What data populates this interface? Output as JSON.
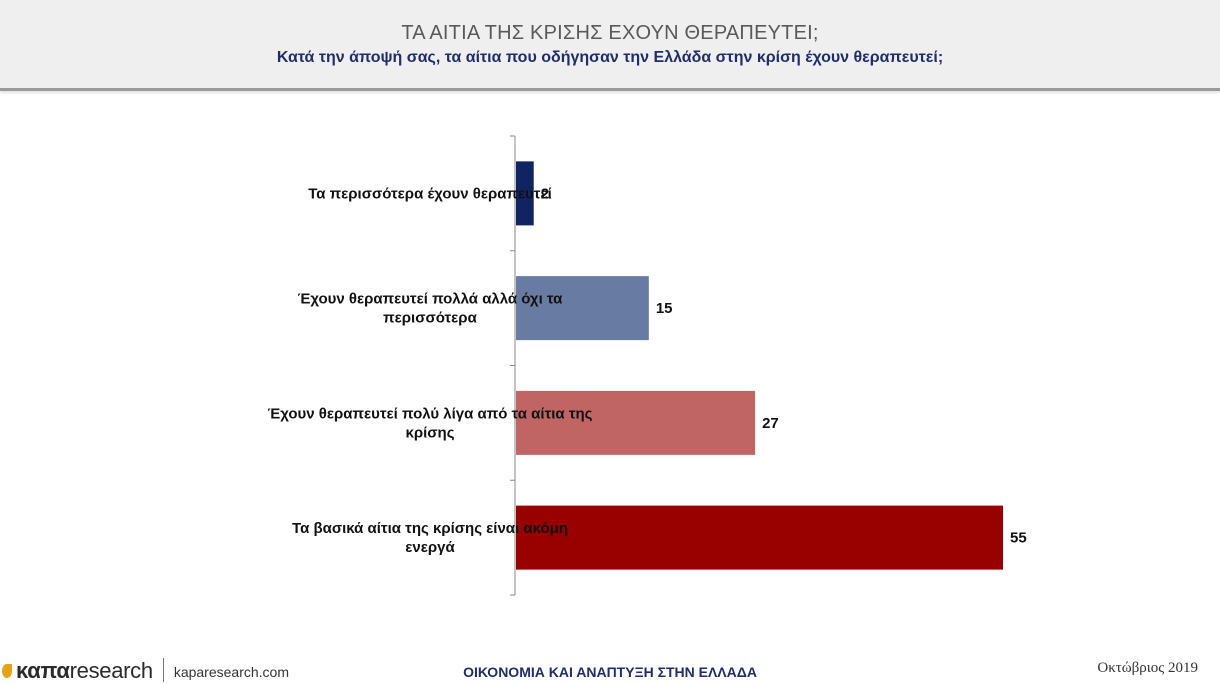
{
  "header": {
    "title": "ΤΑ ΑΙΤΙΑ ΤΗΣ ΚΡΙΣΗΣ ΕΧΟΥΝ ΘΕΡΑΠΕΥΤΕΙ;",
    "subtitle": "Κατά την άποψή σας, τα αίτια που οδήγησαν την Ελλάδα στην κρίση έχουν θεραπευτεί;"
  },
  "chart_data": {
    "type": "bar",
    "orientation": "horizontal",
    "categories": [
      [
        "Τα περισσότερα έχουν θεραπευτεί"
      ],
      [
        "Έχουν θεραπευτεί πολλά αλλά όχι τα",
        "περισσότερα"
      ],
      [
        "Έχουν θεραπευτεί πολύ λίγα από τα αίτια της",
        "κρίσης"
      ],
      [
        "Τα βασικά αίτια της κρίσης είναι ακόμη",
        "ενεργά"
      ]
    ],
    "values": [
      2,
      15,
      27,
      55
    ],
    "value_labels": [
      "2",
      "15",
      "27",
      "55"
    ],
    "colors": [
      "#0f2460",
      "#687ba3",
      "#c06464",
      "#990000"
    ],
    "xlim": [
      0,
      60
    ],
    "grid": false,
    "legend": "none"
  },
  "footer": {
    "brand_bold": "καπα",
    "brand_light": "research",
    "url": "kaparesearch.com",
    "center": "ΟΙΚΟΝΟΜΙΑ ΚΑΙ ΑΝΑΠΤΥΞΗ ΣΤΗΝ ΕΛΛΑΔΑ",
    "date": "Οκτώβριος 2019"
  }
}
